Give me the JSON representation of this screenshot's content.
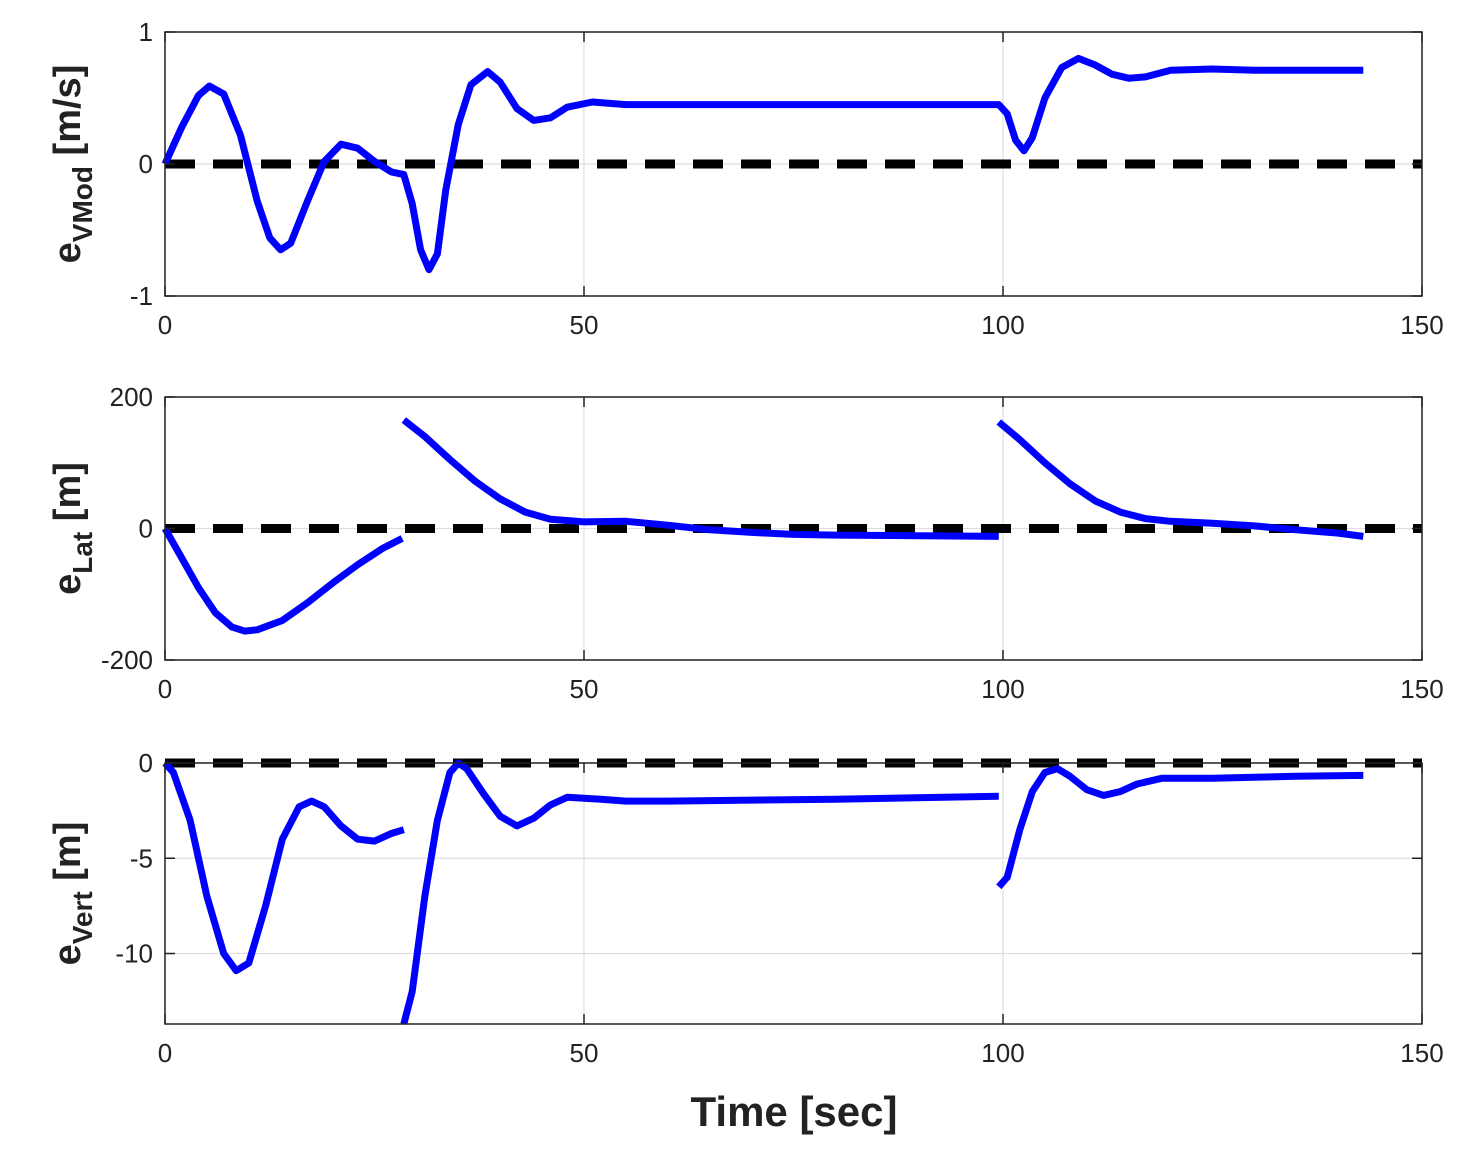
{
  "colors": {
    "signal": "#0000ff",
    "reference": "#000000",
    "grid": "#dedede",
    "axes": "#222222"
  },
  "chart_data": [
    {
      "type": "line",
      "ylabel": {
        "main": "e",
        "sub": "VMod",
        "unit": " [m/s]"
      },
      "xlim": [
        0,
        150
      ],
      "ylim": [
        -1,
        1
      ],
      "xticks": [
        0,
        50,
        100,
        150
      ],
      "yticks": [
        -1,
        0,
        1
      ],
      "grid": true,
      "reference": {
        "y": 0,
        "style": "dashed"
      },
      "segments": [
        [
          [
            0,
            0
          ],
          [
            2,
            0.28
          ],
          [
            4,
            0.52
          ],
          [
            5.3,
            0.59
          ],
          [
            7,
            0.53
          ],
          [
            9,
            0.22
          ],
          [
            11,
            -0.28
          ],
          [
            12.5,
            -0.56
          ],
          [
            13.8,
            -0.65
          ],
          [
            15,
            -0.6
          ],
          [
            17,
            -0.28
          ],
          [
            19,
            0.02
          ],
          [
            21,
            0.15
          ],
          [
            23,
            0.12
          ],
          [
            25,
            0.02
          ],
          [
            27,
            -0.06
          ],
          [
            28.5,
            -0.08
          ],
          [
            29.5,
            -0.3
          ],
          [
            30.5,
            -0.65
          ],
          [
            31.5,
            -0.8
          ],
          [
            32.5,
            -0.68
          ],
          [
            33.5,
            -0.2
          ],
          [
            35,
            0.3
          ],
          [
            36.5,
            0.6
          ],
          [
            38.5,
            0.7
          ],
          [
            40,
            0.62
          ],
          [
            42,
            0.42
          ],
          [
            44,
            0.33
          ],
          [
            46,
            0.35
          ],
          [
            48,
            0.43
          ],
          [
            51,
            0.47
          ],
          [
            55,
            0.45
          ],
          [
            60,
            0.45
          ],
          [
            80,
            0.45
          ],
          [
            99.5,
            0.45
          ],
          [
            100.5,
            0.38
          ],
          [
            101.5,
            0.18
          ],
          [
            102.5,
            0.1
          ],
          [
            103.5,
            0.2
          ],
          [
            105,
            0.5
          ],
          [
            107,
            0.73
          ],
          [
            109,
            0.8
          ],
          [
            111,
            0.75
          ],
          [
            113,
            0.68
          ],
          [
            115,
            0.65
          ],
          [
            117,
            0.66
          ],
          [
            120,
            0.71
          ],
          [
            125,
            0.72
          ],
          [
            130,
            0.71
          ],
          [
            135,
            0.71
          ],
          [
            143,
            0.71
          ]
        ]
      ]
    },
    {
      "type": "line",
      "ylabel": {
        "main": "e",
        "sub": "Lat",
        "unit": " [m]"
      },
      "xlim": [
        0,
        150
      ],
      "ylim": [
        -200,
        200
      ],
      "xticks": [
        0,
        50,
        100,
        150
      ],
      "yticks": [
        -200,
        0,
        200
      ],
      "grid": true,
      "reference": {
        "y": 0,
        "style": "dashed"
      },
      "segments": [
        [
          [
            0,
            0
          ],
          [
            2,
            -45
          ],
          [
            4,
            -90
          ],
          [
            6,
            -128
          ],
          [
            8,
            -150
          ],
          [
            9.5,
            -156
          ],
          [
            11,
            -154
          ],
          [
            14,
            -140
          ],
          [
            17,
            -113
          ],
          [
            20,
            -83
          ],
          [
            23,
            -55
          ],
          [
            26,
            -30
          ],
          [
            28.3,
            -15
          ]
        ],
        [
          [
            28.5,
            165
          ],
          [
            31,
            140
          ],
          [
            34,
            105
          ],
          [
            37,
            72
          ],
          [
            40,
            45
          ],
          [
            43,
            25
          ],
          [
            46,
            14
          ],
          [
            50,
            10
          ],
          [
            55,
            11
          ],
          [
            60,
            5
          ],
          [
            65,
            -2
          ],
          [
            70,
            -6
          ],
          [
            75,
            -9
          ],
          [
            80,
            -10
          ],
          [
            90,
            -11
          ],
          [
            99.5,
            -12
          ]
        ],
        [
          [
            99.5,
            162
          ],
          [
            102,
            135
          ],
          [
            105,
            100
          ],
          [
            108,
            68
          ],
          [
            111,
            42
          ],
          [
            114,
            25
          ],
          [
            117,
            15
          ],
          [
            120,
            11
          ],
          [
            125,
            8
          ],
          [
            130,
            4
          ],
          [
            135,
            -2
          ],
          [
            140,
            -7
          ],
          [
            143,
            -12
          ]
        ]
      ]
    },
    {
      "type": "line",
      "ylabel": {
        "main": "e",
        "sub": "Vert",
        "unit": " [m]"
      },
      "xlim": [
        0,
        150
      ],
      "ylim": [
        -13.7,
        0
      ],
      "xticks": [
        0,
        50,
        100,
        150
      ],
      "yticks": [
        -10,
        -5,
        0
      ],
      "grid": true,
      "reference": {
        "y": 0,
        "style": "dashed"
      },
      "segments": [
        [
          [
            0,
            0
          ],
          [
            1,
            -0.5
          ],
          [
            3,
            -3
          ],
          [
            5,
            -7
          ],
          [
            7,
            -10
          ],
          [
            8.5,
            -10.9
          ],
          [
            10,
            -10.5
          ],
          [
            12,
            -7.5
          ],
          [
            14,
            -4
          ],
          [
            16,
            -2.3
          ],
          [
            17.5,
            -2
          ],
          [
            19,
            -2.3
          ],
          [
            21,
            -3.3
          ],
          [
            23,
            -4
          ],
          [
            25,
            -4.1
          ],
          [
            27,
            -3.7
          ],
          [
            28.5,
            -3.5
          ]
        ],
        [
          [
            28.5,
            -13.7
          ],
          [
            29.5,
            -12
          ],
          [
            31,
            -7
          ],
          [
            32.5,
            -3
          ],
          [
            34,
            -0.5
          ],
          [
            35,
            0
          ],
          [
            36,
            -0.3
          ],
          [
            38,
            -1.6
          ],
          [
            40,
            -2.8
          ],
          [
            42,
            -3.3
          ],
          [
            44,
            -2.9
          ],
          [
            46,
            -2.2
          ],
          [
            48,
            -1.8
          ],
          [
            52,
            -1.9
          ],
          [
            55,
            -2
          ],
          [
            60,
            -2
          ],
          [
            80,
            -1.9
          ],
          [
            99.5,
            -1.75
          ]
        ],
        [
          [
            99.5,
            -6.5
          ],
          [
            100.5,
            -6
          ],
          [
            102,
            -3.5
          ],
          [
            103.5,
            -1.5
          ],
          [
            105,
            -0.5
          ],
          [
            106.5,
            -0.3
          ],
          [
            108,
            -0.7
          ],
          [
            110,
            -1.4
          ],
          [
            112,
            -1.7
          ],
          [
            114,
            -1.5
          ],
          [
            116,
            -1.1
          ],
          [
            119,
            -0.8
          ],
          [
            125,
            -0.8
          ],
          [
            130,
            -0.75
          ],
          [
            135,
            -0.7
          ],
          [
            143,
            -0.65
          ]
        ]
      ]
    }
  ],
  "xlabel": "Time [sec]"
}
